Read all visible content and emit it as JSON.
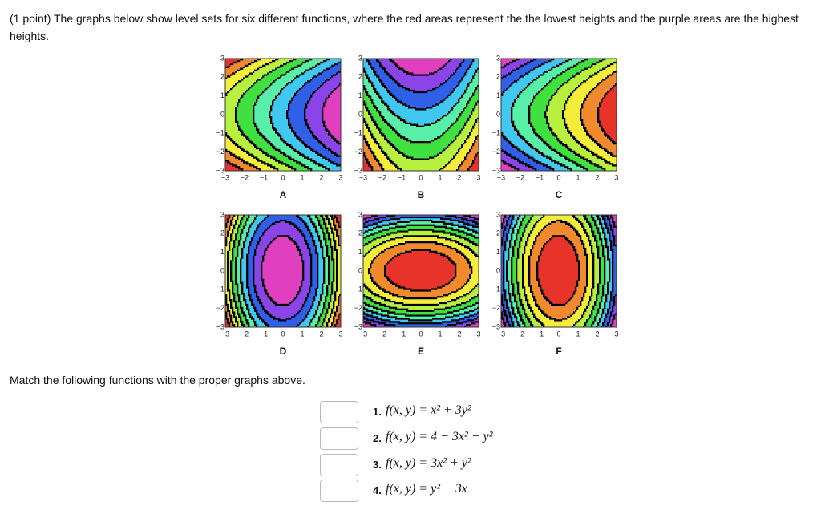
{
  "question": "(1 point) The graphs below show level sets for six different functions, where the red areas represent the the lowest heights and the purple areas are the highest heights.",
  "graphs": [
    {
      "label": "A"
    },
    {
      "label": "B"
    },
    {
      "label": "C"
    },
    {
      "label": "D"
    },
    {
      "label": "E"
    },
    {
      "label": "F"
    }
  ],
  "axis_ticks": [
    "−3",
    "−2",
    "−1",
    "0",
    "1",
    "2",
    "3"
  ],
  "instruction": "Match the following functions with the proper graphs above.",
  "items": [
    {
      "number": "1.",
      "function": "f(x, y) = x² + 3y²"
    },
    {
      "number": "2.",
      "function": "f(x, y) = 4 − 3x² − y²"
    },
    {
      "number": "3.",
      "function": "f(x, y) = 3x² + y²"
    },
    {
      "number": "4.",
      "function": "f(x, y) = y² − 3x"
    }
  ]
}
